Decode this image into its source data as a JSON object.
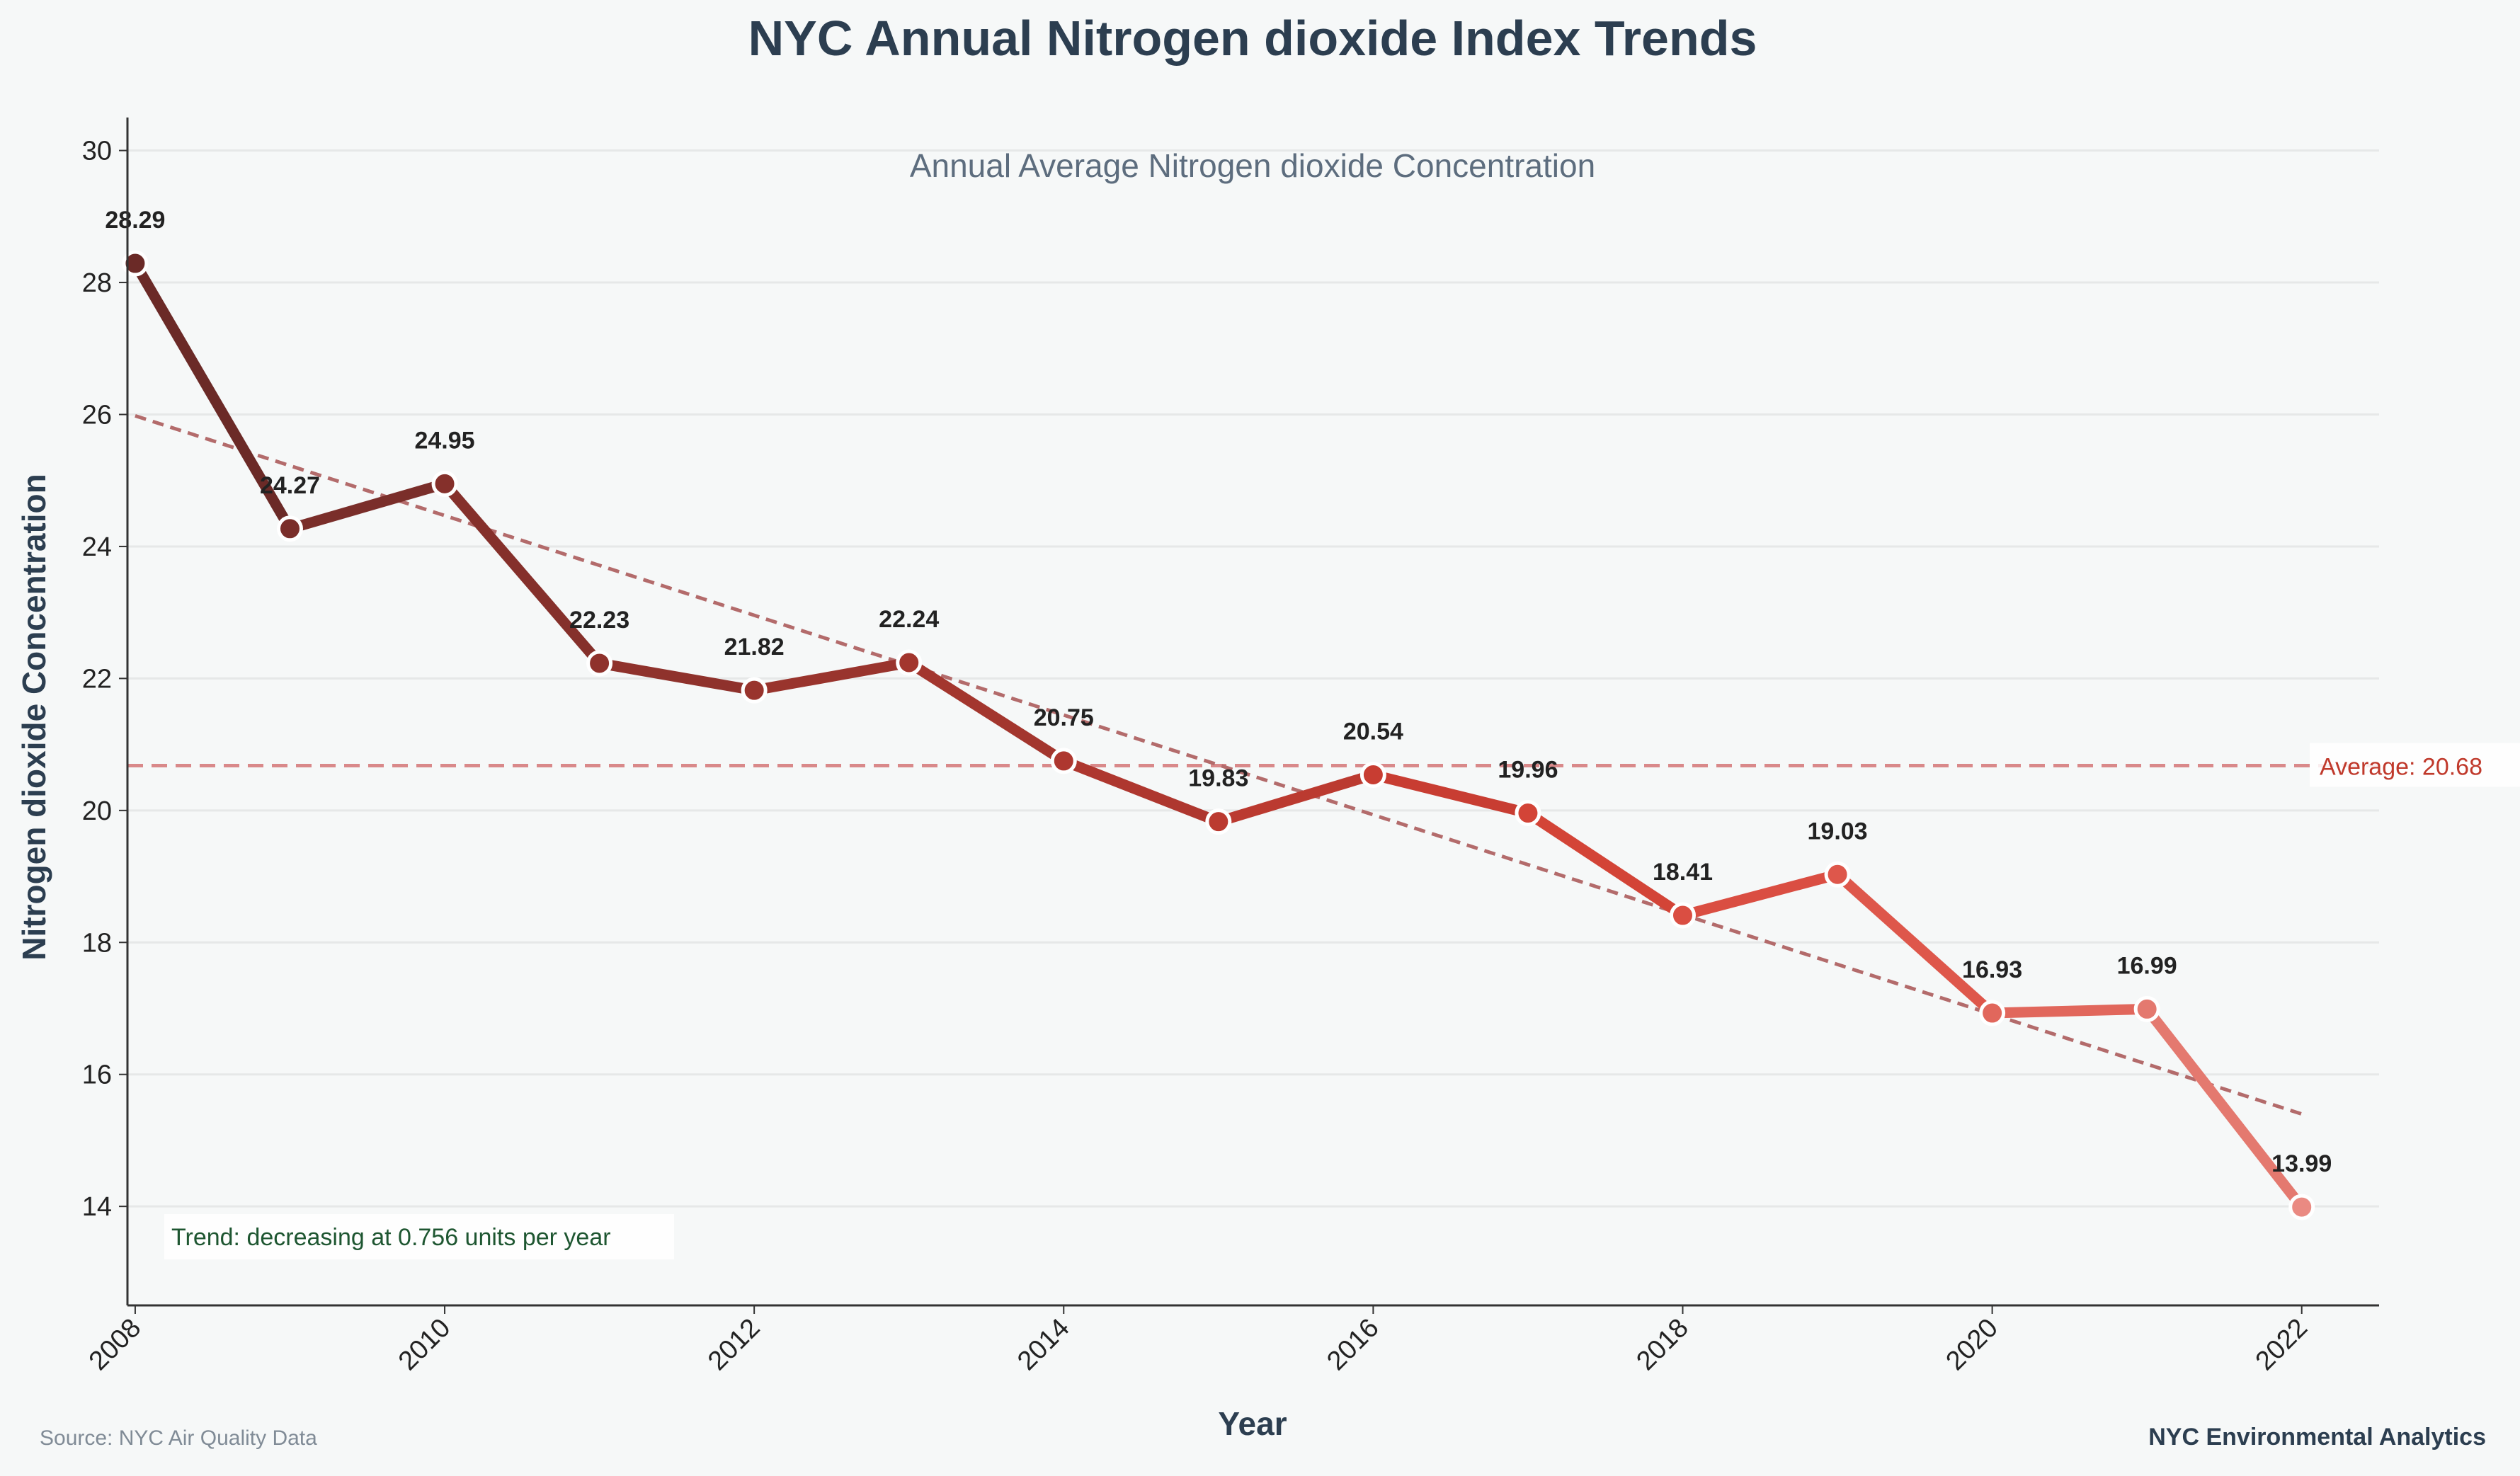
{
  "chart_data": {
    "type": "line",
    "title": "NYC Annual Nitrogen dioxide Index Trends",
    "subtitle": "Annual Average Nitrogen dioxide Concentration",
    "xlabel": "Year",
    "ylabel": "Nitrogen dioxide Concentration",
    "x": [
      2008,
      2009,
      2010,
      2011,
      2012,
      2013,
      2014,
      2015,
      2016,
      2017,
      2018,
      2019,
      2020,
      2021,
      2022
    ],
    "series": [
      {
        "values": [
          28.29,
          24.27,
          24.95,
          22.23,
          21.82,
          22.24,
          20.75,
          19.83,
          20.54,
          19.96,
          18.41,
          19.03,
          16.93,
          16.99,
          13.99
        ]
      }
    ],
    "data_labels": [
      "28.29",
      "24.27",
      "24.95",
      "22.23",
      "21.82",
      "22.24",
      "20.75",
      "19.83",
      "20.54",
      "19.96",
      "18.41",
      "19.03",
      "16.93",
      "16.99",
      "13.99"
    ],
    "xticks": [
      "2008",
      "2010",
      "2012",
      "2014",
      "2016",
      "2018",
      "2020",
      "2022"
    ],
    "yticks": [
      "14",
      "16",
      "18",
      "20",
      "22",
      "24",
      "26",
      "28",
      "30"
    ],
    "xlim": [
      2007.95,
      2022.5
    ],
    "ylim": [
      12.5,
      30.5
    ],
    "average": {
      "value": 20.68,
      "label": "Average: 20.68"
    },
    "trendline": {
      "start": [
        2008,
        25.98
      ],
      "end": [
        2022,
        15.4
      ]
    },
    "trend_text": "Trend: decreasing at 0.756 units per year",
    "grid": "horizontal",
    "line_colors": [
      "#6b2a27",
      "#7a2e2a",
      "#85302b",
      "#8f322c",
      "#99342d",
      "#a3362e",
      "#ae372f",
      "#bb3a30",
      "#c83d32",
      "#d34437",
      "#da4e42",
      "#de574b",
      "#e1675c",
      "#e4796f"
    ],
    "marker_colors": [
      "#6b2a27",
      "#7a2e2a",
      "#85302b",
      "#8f322c",
      "#99342d",
      "#a3362e",
      "#ae372f",
      "#bb3a30",
      "#c83d32",
      "#d34437",
      "#da4e42",
      "#de574b",
      "#e1675c",
      "#e4796f",
      "#ea8a82"
    ]
  },
  "footer": {
    "source": "Source: NYC Air Quality Data",
    "credit": "NYC Environmental Analytics"
  },
  "colors": {
    "title": "#2c3e50",
    "subtitle": "#5d6d7e",
    "average": "#c0392b",
    "average_line": "#d9898a",
    "trendline": "#b36b6b",
    "trend_text": "#1e5631",
    "grid": "#e6e8e8",
    "axis": "#333333",
    "source": "#808b96"
  }
}
